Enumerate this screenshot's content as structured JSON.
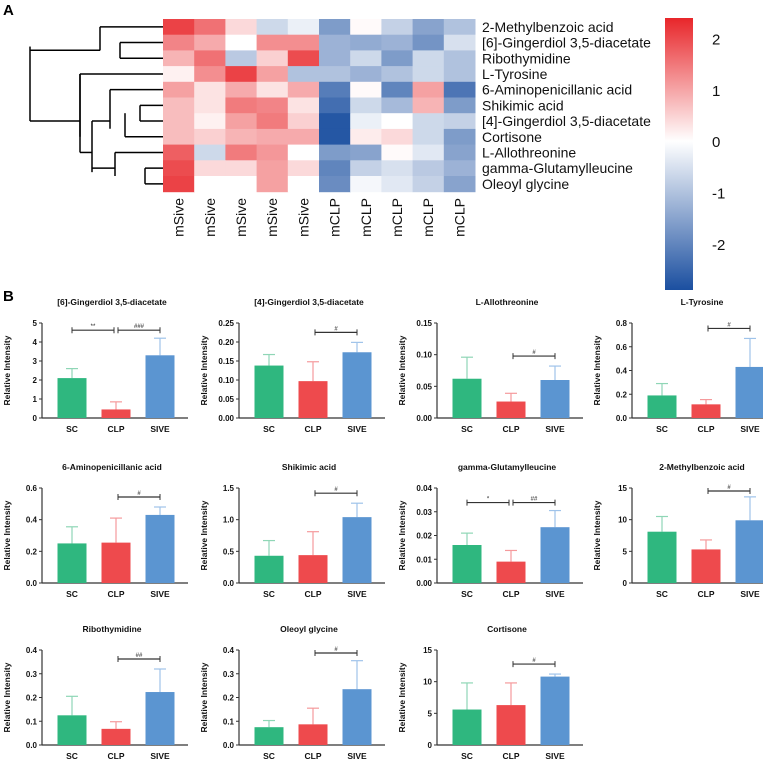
{
  "panel_labels": {
    "a": "A",
    "b": "B"
  },
  "chart_data": [
    {
      "type": "heatmap",
      "title": "",
      "rows": [
        "2-Methylbenzoic acid",
        "[6]-Gingerdiol 3,5-diacetate",
        "Ribothymidine",
        "L-Tyrosine",
        "6-Aminopenicillanic acid",
        "Shikimic acid",
        "[4]-Gingerdiol 3,5-diacetate",
        "Cortisone",
        "L-Allothreonine",
        "gamma-Glutamylleucine",
        "Oleoyl glycine"
      ],
      "columns": [
        "mSive",
        "mSive",
        "mSive",
        "mSive",
        "mSive",
        "mCLP",
        "mCLP",
        "mCLP",
        "mCLP",
        "mCLP"
      ],
      "values": [
        [
          2.0,
          1.5,
          0.4,
          -0.5,
          -0.2,
          -1.3,
          0.05,
          -0.6,
          -1.2,
          -0.8
        ],
        [
          1.3,
          0.9,
          0,
          1.2,
          1.2,
          -1.0,
          -1.1,
          -1.0,
          -1.4,
          -0.4
        ],
        [
          0.8,
          1.5,
          -0.7,
          0.5,
          1.9,
          -1.0,
          -0.5,
          -1.3,
          -0.5,
          -0.8
        ],
        [
          0.15,
          1.2,
          2.0,
          1.0,
          -0.8,
          -0.8,
          -1.0,
          -0.8,
          -0.5,
          -0.8
        ],
        [
          1.0,
          0.3,
          0.9,
          0.3,
          0.9,
          -1.7,
          0.05,
          -1.6,
          1.0,
          -1.8
        ],
        [
          0.7,
          0.3,
          1.4,
          1.3,
          0.3,
          -1.9,
          -0.5,
          -0.9,
          0.8,
          -1.3
        ],
        [
          0.7,
          0.15,
          1.0,
          1.4,
          0.5,
          -2.2,
          -0.2,
          0,
          -0.5,
          -0.6
        ],
        [
          0.7,
          0.5,
          0.8,
          0.9,
          0.9,
          -2.2,
          0.2,
          0.4,
          -0.5,
          -1.3
        ],
        [
          1.7,
          -0.5,
          1.4,
          1.1,
          0,
          -1.3,
          -1.2,
          0.05,
          -0.3,
          -1.2
        ],
        [
          1.9,
          0.4,
          0.4,
          1.0,
          0.4,
          -1.6,
          -0.6,
          -0.4,
          -0.7,
          -1.0
        ],
        [
          2.0,
          0,
          0,
          1.0,
          0,
          -1.5,
          -0.1,
          -0.3,
          -0.6,
          -1.2
        ]
      ],
      "colorbar": {
        "ticks": [
          2,
          1,
          0,
          -1,
          -2
        ],
        "range": [
          -2.9,
          2.4
        ],
        "high": "#e8262a",
        "mid": "#ffffff",
        "low": "#1b4fa0"
      }
    },
    {
      "type": "bar",
      "title": "[6]-Gingerdiol 3,5-diacetate",
      "ylabel": "Relative Intensity",
      "categories": [
        "SC",
        "CLP",
        "SIVE"
      ],
      "values": [
        2.1,
        0.45,
        3.3
      ],
      "error_upper": [
        2.6,
        0.85,
        4.2
      ],
      "ylim": [
        0,
        5
      ],
      "yticks": [
        "0",
        "1",
        "2",
        "3",
        "4",
        "5"
      ],
      "sig": [
        {
          "from": 0,
          "to": 1,
          "label": "**"
        },
        {
          "from": 1,
          "to": 2,
          "label": "###"
        }
      ]
    },
    {
      "type": "bar",
      "title": "[4]-Gingerdiol 3,5-diacetate",
      "ylabel": "Relative Intensity",
      "categories": [
        "SC",
        "CLP",
        "SIVE"
      ],
      "values": [
        0.138,
        0.097,
        0.173
      ],
      "error_upper": [
        0.167,
        0.148,
        0.199
      ],
      "ylim": [
        0,
        0.25
      ],
      "yticks": [
        "0.00",
        "0.05",
        "0.10",
        "0.15",
        "0.20",
        "0.25"
      ],
      "sig": [
        {
          "from": 1,
          "to": 2,
          "label": "#"
        }
      ]
    },
    {
      "type": "bar",
      "title": "L-Allothreonine",
      "ylabel": "Relative Intensity",
      "categories": [
        "SC",
        "CLP",
        "SIVE"
      ],
      "values": [
        0.062,
        0.026,
        0.06
      ],
      "error_upper": [
        0.096,
        0.039,
        0.082
      ],
      "ylim": [
        0,
        0.15
      ],
      "yticks": [
        "0.00",
        "0.05",
        "0.10",
        "0.15"
      ],
      "sig": [
        {
          "from": 1,
          "to": 2,
          "label": "#"
        }
      ]
    },
    {
      "type": "bar",
      "title": "L-Tyrosine",
      "ylabel": "Relative Intensity",
      "categories": [
        "SC",
        "CLP",
        "SIVE"
      ],
      "values": [
        0.19,
        0.115,
        0.43
      ],
      "error_upper": [
        0.29,
        0.155,
        0.67
      ],
      "ylim": [
        0,
        0.8
      ],
      "yticks": [
        "0.0",
        "0.2",
        "0.4",
        "0.6",
        "0.8"
      ],
      "sig": [
        {
          "from": 1,
          "to": 2,
          "label": "#"
        }
      ]
    },
    {
      "type": "bar",
      "title": "6-Aminopenicillanic acid",
      "ylabel": "Relative Intensity",
      "categories": [
        "SC",
        "CLP",
        "SIVE"
      ],
      "values": [
        0.25,
        0.255,
        0.43
      ],
      "error_upper": [
        0.355,
        0.41,
        0.48
      ],
      "ylim": [
        0,
        0.6
      ],
      "yticks": [
        "0.0",
        "0.2",
        "0.4",
        "0.6"
      ],
      "sig": [
        {
          "from": 1,
          "to": 2,
          "label": "#"
        }
      ]
    },
    {
      "type": "bar",
      "title": "Shikimic acid",
      "ylabel": "Relative Intensity",
      "categories": [
        "SC",
        "CLP",
        "SIVE"
      ],
      "values": [
        0.43,
        0.44,
        1.04
      ],
      "error_upper": [
        0.67,
        0.81,
        1.26
      ],
      "ylim": [
        0,
        1.5
      ],
      "yticks": [
        "0.0",
        "0.5",
        "1.0",
        "1.5"
      ],
      "sig": [
        {
          "from": 1,
          "to": 2,
          "label": "#"
        }
      ]
    },
    {
      "type": "bar",
      "title": "gamma-Glutamylleucine",
      "ylabel": "Relative Intensity",
      "categories": [
        "SC",
        "CLP",
        "SIVE"
      ],
      "values": [
        0.016,
        0.009,
        0.0235
      ],
      "error_upper": [
        0.021,
        0.0137,
        0.0305
      ],
      "ylim": [
        0,
        0.04
      ],
      "yticks": [
        "0.00",
        "0.01",
        "0.02",
        "0.03",
        "0.04"
      ],
      "sig": [
        {
          "from": 0,
          "to": 1,
          "label": "*"
        },
        {
          "from": 1,
          "to": 2,
          "label": "##"
        }
      ]
    },
    {
      "type": "bar",
      "title": "2-Methylbenzoic acid",
      "ylabel": "Relative Intensity",
      "categories": [
        "SC",
        "CLP",
        "SIVE"
      ],
      "values": [
        8.1,
        5.3,
        9.9
      ],
      "error_upper": [
        10.5,
        6.8,
        13.6
      ],
      "ylim": [
        0,
        15
      ],
      "yticks": [
        "0",
        "5",
        "10",
        "15"
      ],
      "sig": [
        {
          "from": 1,
          "to": 2,
          "label": "#"
        }
      ]
    },
    {
      "type": "bar",
      "title": "Ribothymidine",
      "ylabel": "Relative Intensity",
      "categories": [
        "SC",
        "CLP",
        "SIVE"
      ],
      "values": [
        0.125,
        0.068,
        0.223
      ],
      "error_upper": [
        0.205,
        0.098,
        0.32
      ],
      "ylim": [
        0,
        0.4
      ],
      "yticks": [
        "0.0",
        "0.1",
        "0.2",
        "0.3",
        "0.4"
      ],
      "sig": [
        {
          "from": 1,
          "to": 2,
          "label": "##"
        }
      ]
    },
    {
      "type": "bar",
      "title": "Oleoyl glycine",
      "ylabel": "Relative Intensity",
      "categories": [
        "SC",
        "CLP",
        "SIVE"
      ],
      "values": [
        0.075,
        0.087,
        0.235
      ],
      "error_upper": [
        0.103,
        0.155,
        0.355
      ],
      "ylim": [
        0,
        0.4
      ],
      "yticks": [
        "0.0",
        "0.1",
        "0.2",
        "0.3",
        "0.4"
      ],
      "sig": [
        {
          "from": 1,
          "to": 2,
          "label": "#"
        }
      ]
    },
    {
      "type": "bar",
      "title": "Cortisone",
      "ylabel": "Relative Intensity",
      "categories": [
        "SC",
        "CLP",
        "SIVE"
      ],
      "values": [
        5.6,
        6.3,
        10.8
      ],
      "error_upper": [
        9.8,
        9.8,
        11.2
      ],
      "ylim": [
        0,
        15
      ],
      "yticks": [
        "0",
        "5",
        "10",
        "15"
      ],
      "sig": [
        {
          "from": 1,
          "to": 2,
          "label": "#"
        }
      ]
    }
  ],
  "bar_colors": [
    "#2fb77f",
    "#ee4a4d",
    "#5b95d1"
  ],
  "error_colors": [
    "#8fd6b6",
    "#f59a9c",
    "#9fc3ea"
  ]
}
